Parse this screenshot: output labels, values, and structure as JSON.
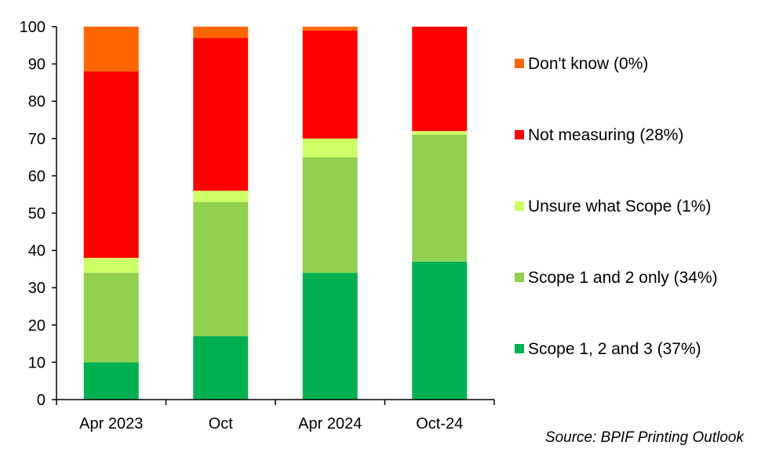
{
  "chart_data": {
    "type": "bar",
    "stacked": true,
    "categories": [
      "Apr 2023",
      "Oct",
      "Apr 2024",
      "Oct-24"
    ],
    "ylim": [
      0,
      100
    ],
    "yticks": [
      0,
      10,
      20,
      30,
      40,
      50,
      60,
      70,
      80,
      90,
      100
    ],
    "grid": false,
    "legend_position": "right",
    "series": [
      {
        "name": "Scope 1, 2 and 3 (37%)",
        "color": "#00b050",
        "values": [
          10,
          17,
          34,
          37
        ]
      },
      {
        "name": "Scope 1 and 2 only (34%)",
        "color": "#92d050",
        "values": [
          24,
          36,
          31,
          34
        ]
      },
      {
        "name": "Unsure what Scope (1%)",
        "color": "#ccff66",
        "values": [
          4,
          3,
          5,
          1
        ]
      },
      {
        "name": "Not measuring (28%)",
        "color": "#ff0000",
        "values": [
          50,
          41,
          29,
          28
        ]
      },
      {
        "name": "Don't know (0%)",
        "color": "#ff6600",
        "values": [
          12,
          3,
          1,
          0
        ]
      }
    ],
    "legend_order": [
      4,
      3,
      2,
      1,
      0
    ]
  },
  "source": "Source: BPIF Printing Outlook"
}
